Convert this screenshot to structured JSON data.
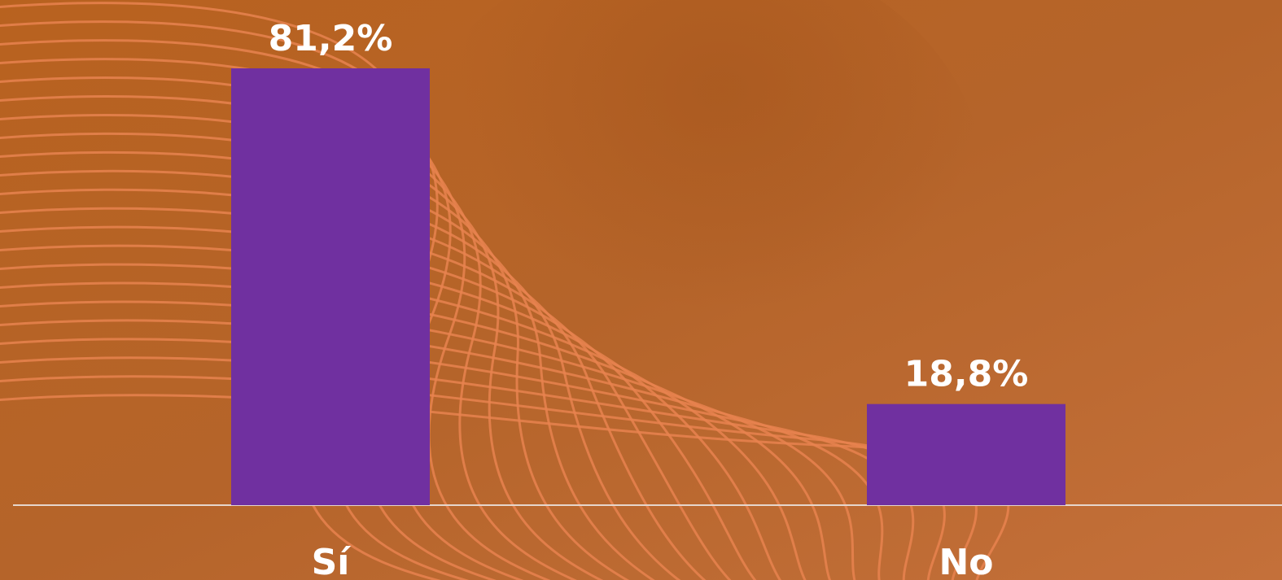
{
  "chart_data": {
    "type": "bar",
    "categories": [
      "Sí",
      "No"
    ],
    "values": [
      81.2,
      18.8
    ],
    "value_labels": [
      "81,2%",
      "18,8%"
    ],
    "color": "#7030a0"
  }
}
